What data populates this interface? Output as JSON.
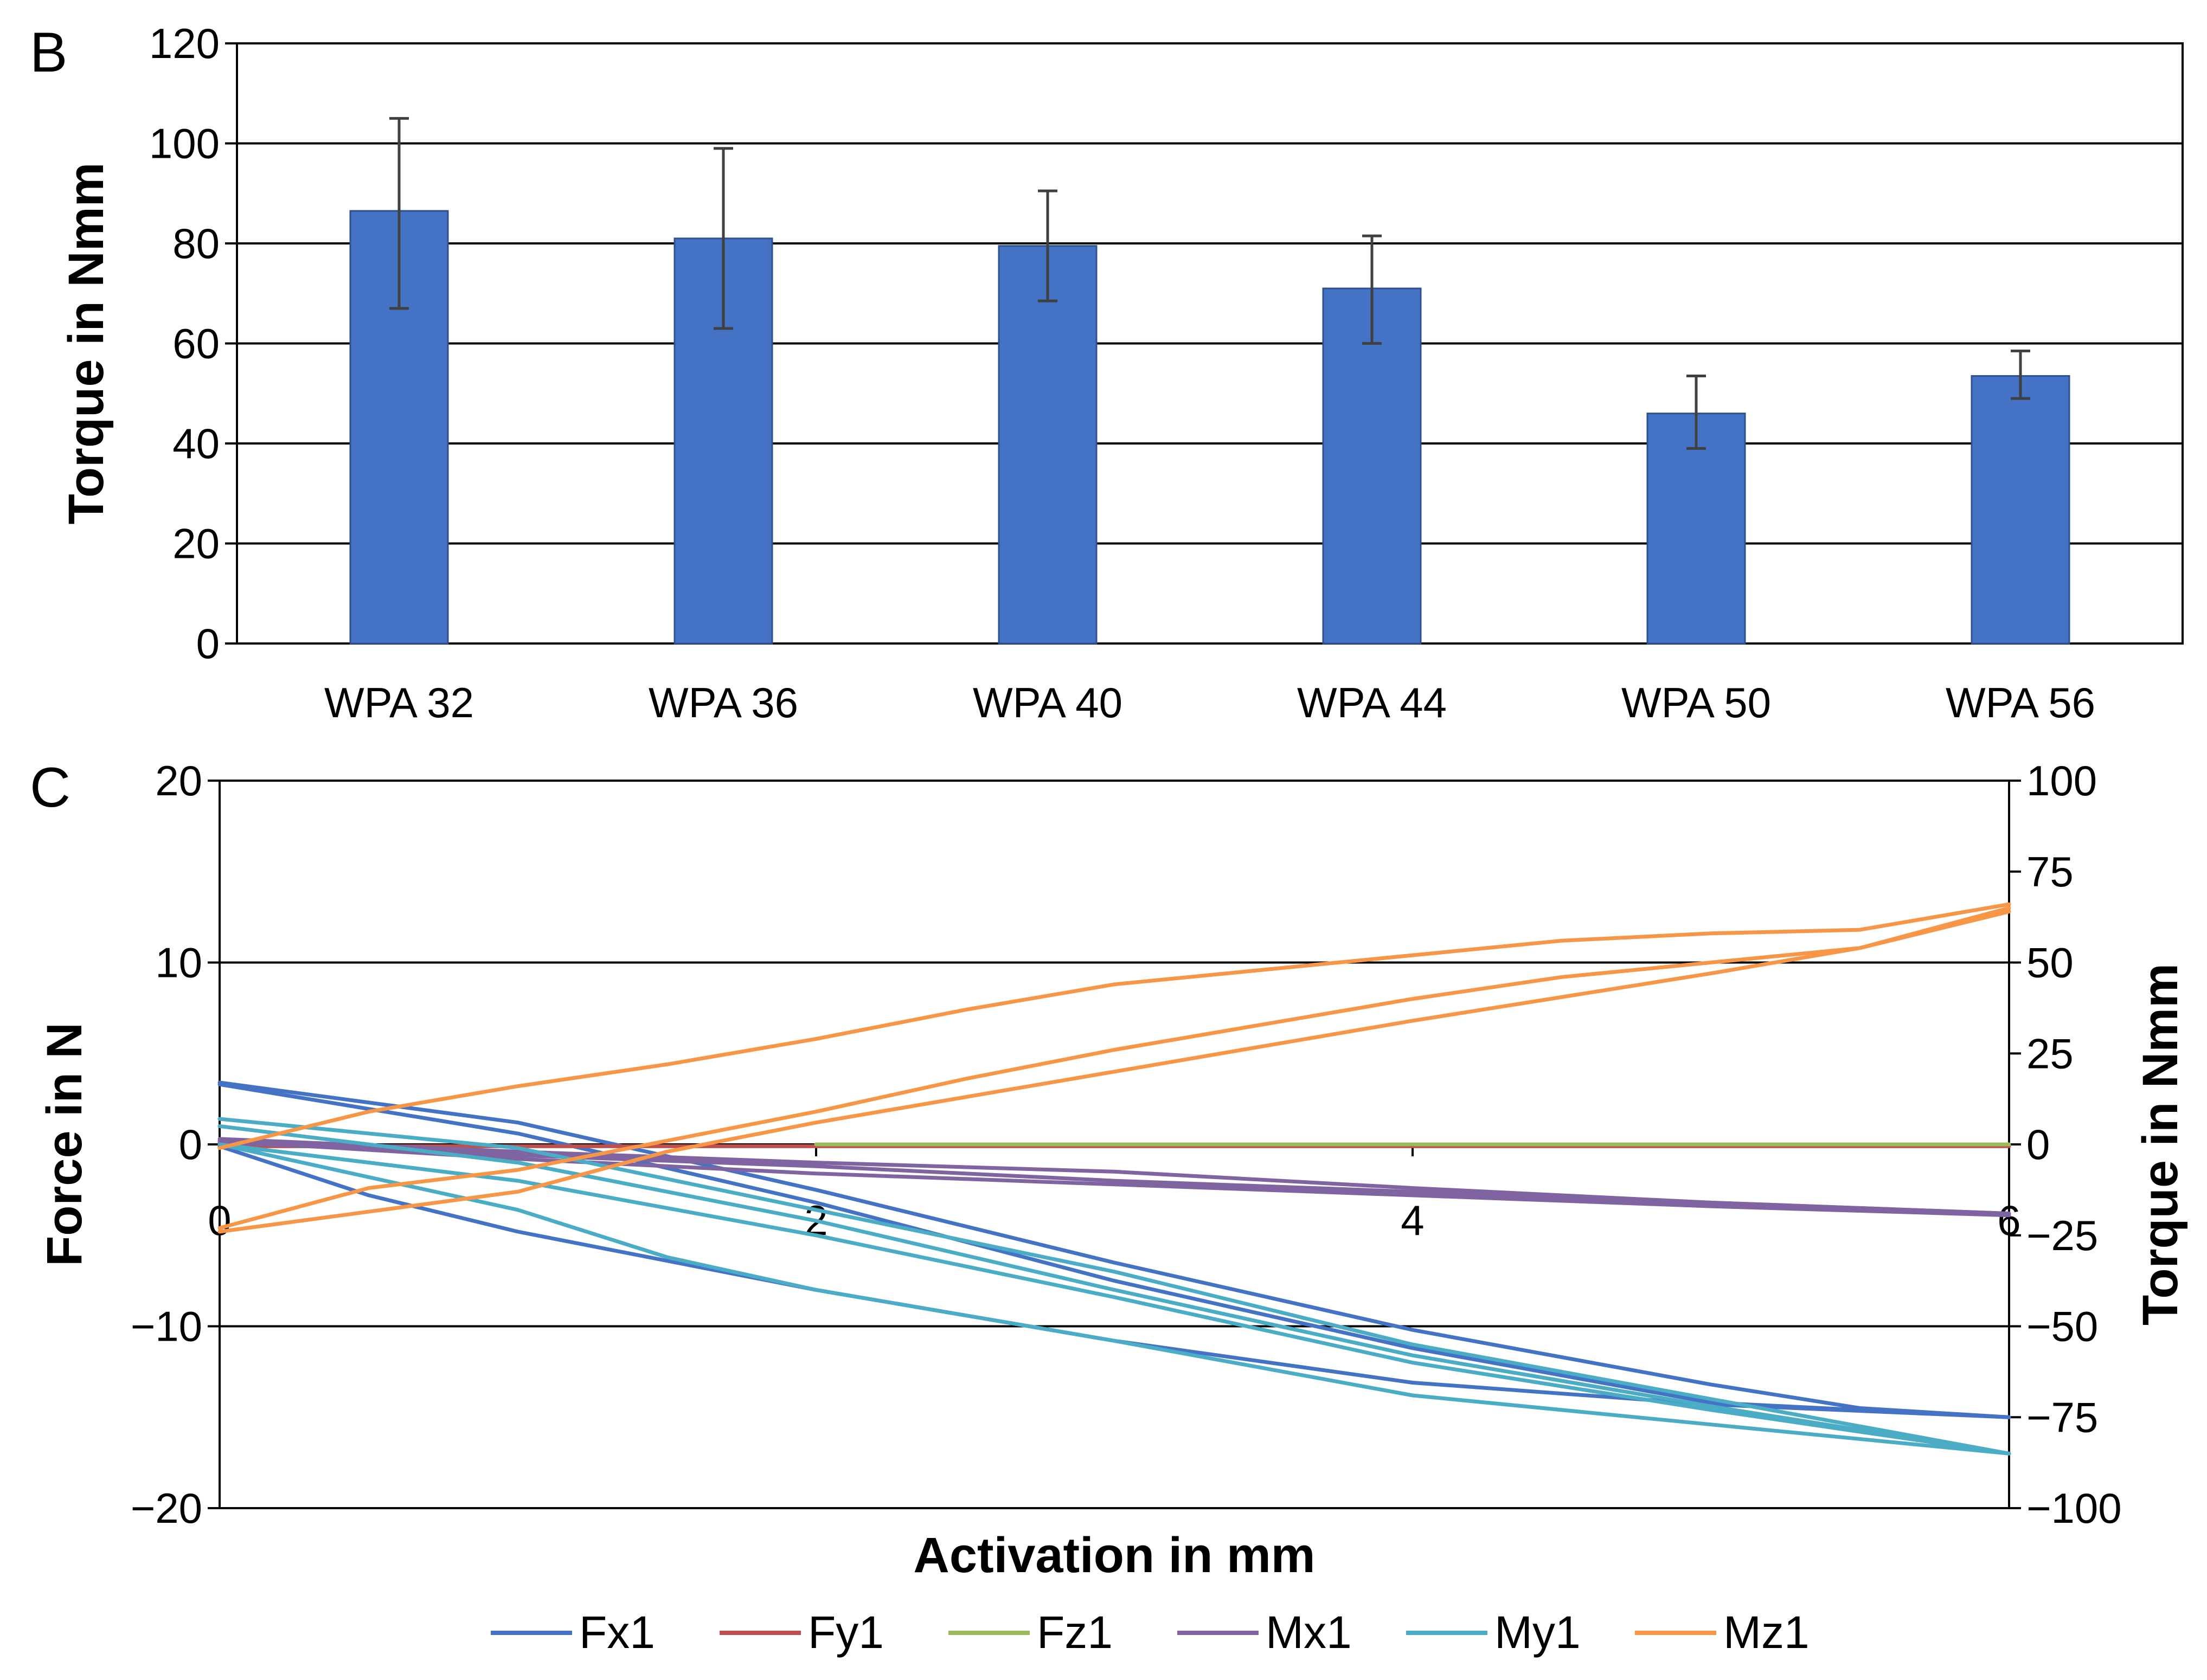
{
  "chart_data": [
    {
      "panel_label": "B",
      "type": "bar",
      "ylabel": "Torque in Nmm",
      "ylim": [
        0,
        120
      ],
      "yticks": [
        0,
        20,
        40,
        60,
        80,
        100,
        120
      ],
      "categories": [
        "WPA 32",
        "WPA 36",
        "WPA 40",
        "WPA 44",
        "WPA 50",
        "WPA 56"
      ],
      "values": [
        86.5,
        81,
        79.5,
        71,
        46,
        53.5
      ],
      "error_low": [
        67,
        63,
        68.5,
        60,
        39,
        49
      ],
      "error_high": [
        105,
        99,
        90.5,
        81.5,
        53.5,
        58.5
      ],
      "bar_color": "#4472C4",
      "grid": "horizontal major"
    },
    {
      "panel_label": "C",
      "type": "line",
      "xlabel": "Activation in mm",
      "ylabel_left": "Force in N",
      "ylabel_right": "Torque in Nmm",
      "xlim": [
        0,
        6
      ],
      "xticks": [
        0,
        2,
        4,
        6
      ],
      "ylim_left": [
        -20,
        20
      ],
      "yticks_left": [
        "−20",
        "−10",
        "0",
        "10",
        "20"
      ],
      "ylim_right": [
        -100,
        100
      ],
      "yticks_right": [
        "−100",
        "−75",
        "−50",
        "−25",
        "0",
        "25",
        "50",
        "75",
        "100"
      ],
      "legend_position": "bottom",
      "series": [
        {
          "name": "Fx1",
          "axis": "left",
          "color": "#4472C4",
          "strands": [
            [
              [
                0,
                3.4
              ],
              [
                1,
                1.2
              ],
              [
                2,
                -2.5
              ],
              [
                3,
                -6.5
              ],
              [
                4,
                -10.2
              ],
              [
                5,
                -13.2
              ],
              [
                5.5,
                -14.5
              ],
              [
                6,
                -15
              ]
            ],
            [
              [
                0,
                3.3
              ],
              [
                1,
                0.6
              ],
              [
                1.5,
                -1.3
              ],
              [
                2,
                -3.2
              ],
              [
                3,
                -7.5
              ],
              [
                4,
                -11.2
              ],
              [
                5,
                -14.2
              ],
              [
                6,
                -15
              ]
            ],
            [
              [
                0,
                -0.1
              ],
              [
                0.5,
                -2.8
              ],
              [
                1,
                -4.8
              ],
              [
                1.5,
                -6.4
              ],
              [
                2,
                -8
              ],
              [
                3,
                -10.8
              ],
              [
                4,
                -13.1
              ],
              [
                5,
                -14.3
              ],
              [
                6,
                -15
              ]
            ]
          ]
        },
        {
          "name": "Fy1",
          "axis": "left",
          "color": "#C0504D",
          "strands": [
            [
              [
                0,
                -0.1
              ],
              [
                6,
                -0.1
              ]
            ]
          ]
        },
        {
          "name": "Fz1",
          "axis": "left",
          "color": "#9BBB59",
          "strands": [
            [
              [
                2,
                0
              ],
              [
                6,
                0
              ]
            ]
          ]
        },
        {
          "name": "Mx1",
          "axis": "right",
          "color": "#8064A2",
          "strands": [
            [
              [
                0,
                1.5
              ],
              [
                1,
                -2
              ],
              [
                2,
                -5
              ],
              [
                3,
                -7.5
              ],
              [
                4,
                -12
              ],
              [
                5,
                -16
              ],
              [
                6,
                -19
              ]
            ],
            [
              [
                0,
                1
              ],
              [
                1,
                -4
              ],
              [
                2,
                -8
              ],
              [
                3,
                -11
              ],
              [
                4,
                -14
              ],
              [
                5,
                -17
              ],
              [
                6,
                -19.5
              ]
            ],
            [
              [
                0,
                0.5
              ],
              [
                1,
                -3
              ],
              [
                2,
                -6
              ],
              [
                3,
                -10
              ],
              [
                4,
                -13
              ],
              [
                5,
                -16
              ],
              [
                6,
                -19
              ]
            ]
          ]
        },
        {
          "name": "My1",
          "axis": "right",
          "color": "#4BACC6",
          "strands": [
            [
              [
                0,
                7
              ],
              [
                1,
                -1
              ],
              [
                2,
                -18
              ],
              [
                3,
                -35
              ],
              [
                4,
                -55
              ],
              [
                5,
                -70
              ],
              [
                6,
                -85
              ]
            ],
            [
              [
                0,
                0
              ],
              [
                1,
                -18
              ],
              [
                1.5,
                -31
              ],
              [
                2,
                -40
              ],
              [
                3,
                -54
              ],
              [
                4,
                -69
              ],
              [
                5,
                -77
              ],
              [
                6,
                -85
              ]
            ],
            [
              [
                0,
                0
              ],
              [
                1,
                -10
              ],
              [
                2,
                -25
              ],
              [
                3,
                -42
              ],
              [
                4,
                -60
              ],
              [
                5,
                -73
              ],
              [
                6,
                -85
              ]
            ],
            [
              [
                0,
                5
              ],
              [
                1,
                -5
              ],
              [
                2,
                -21
              ],
              [
                3,
                -40
              ],
              [
                4,
                -58
              ],
              [
                5,
                -72
              ],
              [
                6,
                -85
              ]
            ]
          ]
        },
        {
          "name": "Mz1",
          "axis": "right",
          "color": "#F79646",
          "strands": [
            [
              [
                0,
                -1
              ],
              [
                0.5,
                9
              ],
              [
                1,
                16
              ],
              [
                1.5,
                22
              ],
              [
                2,
                29
              ],
              [
                2.5,
                37
              ],
              [
                3,
                44
              ],
              [
                3.5,
                48
              ],
              [
                4,
                52
              ],
              [
                4.5,
                56
              ],
              [
                5,
                58
              ],
              [
                5.5,
                59
              ],
              [
                6,
                66
              ]
            ],
            [
              [
                0,
                -23
              ],
              [
                0.5,
                -12
              ],
              [
                1,
                -7
              ],
              [
                1.5,
                1
              ],
              [
                2,
                9
              ],
              [
                2.5,
                18
              ],
              [
                3,
                26
              ],
              [
                3.5,
                33
              ],
              [
                4,
                40
              ],
              [
                4.5,
                46
              ],
              [
                5,
                50
              ],
              [
                5.5,
                54
              ],
              [
                6,
                65
              ]
            ],
            [
              [
                0,
                -24
              ],
              [
                1,
                -13
              ],
              [
                1.5,
                -2
              ],
              [
                2,
                6
              ],
              [
                3,
                20
              ],
              [
                4,
                34
              ],
              [
                5,
                47
              ],
              [
                5.5,
                54
              ],
              [
                6,
                64
              ]
            ]
          ]
        }
      ]
    }
  ]
}
